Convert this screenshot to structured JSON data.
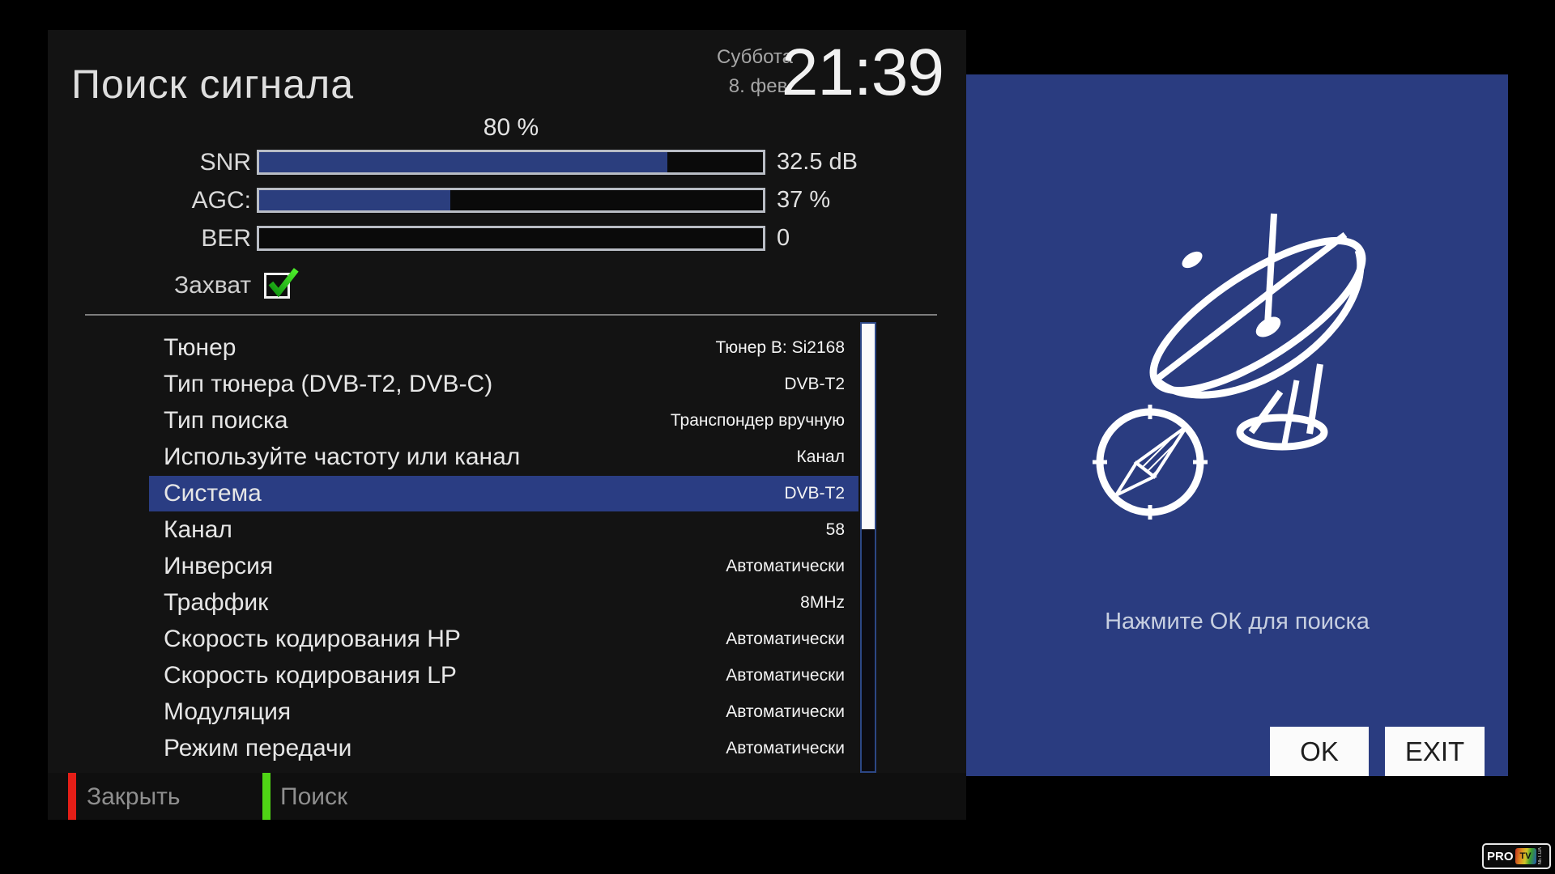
{
  "window": {
    "title": "Поиск сигнала"
  },
  "datetime": {
    "day": "Суббота",
    "date": "8. фев.",
    "time": "21:39"
  },
  "progress": {
    "percent_label": "80 %"
  },
  "signal": {
    "bars": [
      {
        "label": "SNR",
        "value": "32.5 dB",
        "percent": 81
      },
      {
        "label": "AGC:",
        "value": "37 %",
        "percent": 38
      },
      {
        "label": "BER",
        "value": "0",
        "percent": 0
      }
    ]
  },
  "lock": {
    "label": "Захват",
    "checked": true
  },
  "settings": {
    "rows": [
      {
        "label": "Тюнер",
        "value": "Тюнер B: Si2168",
        "selected": false
      },
      {
        "label": "Тип тюнера (DVB-T2, DVB-C)",
        "value": "DVB-T2",
        "selected": false
      },
      {
        "label": "Тип поиска",
        "value": "Транспондер вручную",
        "selected": false
      },
      {
        "label": "Используйте частоту или канал",
        "value": "Канал",
        "selected": false
      },
      {
        "label": "Система",
        "value": "DVB-T2",
        "selected": true
      },
      {
        "label": "Канал",
        "value": "58",
        "selected": false
      },
      {
        "label": "Инверсия",
        "value": "Автоматически",
        "selected": false
      },
      {
        "label": "Траффик",
        "value": "8MHz",
        "selected": false
      },
      {
        "label": "Скорость кодирования HP",
        "value": "Автоматически",
        "selected": false
      },
      {
        "label": "Скорость кодирования LP",
        "value": "Автоматически",
        "selected": false
      },
      {
        "label": "Модуляция",
        "value": "Автоматически",
        "selected": false
      },
      {
        "label": "Режим передачи",
        "value": "Автоматически",
        "selected": false
      }
    ],
    "scrollbar": {
      "thumb_top_pct": 0,
      "thumb_height_pct": 46
    }
  },
  "footer": {
    "close_label": "Закрыть",
    "search_label": "Поиск"
  },
  "panel": {
    "hint": "Нажмите ОК для поиска",
    "ok_label": "OK",
    "exit_label": "EXIT"
  },
  "logo": {
    "pro": "PRO",
    "tv": "TV",
    "net": "NET.UA"
  },
  "colors": {
    "panel_blue": "#2a3c80",
    "bar_fill": "#2b3e7e",
    "selected_row": "#2a3d83",
    "red_key": "#e41e17",
    "green_key": "#4fd415",
    "check_green": "#3ddb1c"
  }
}
